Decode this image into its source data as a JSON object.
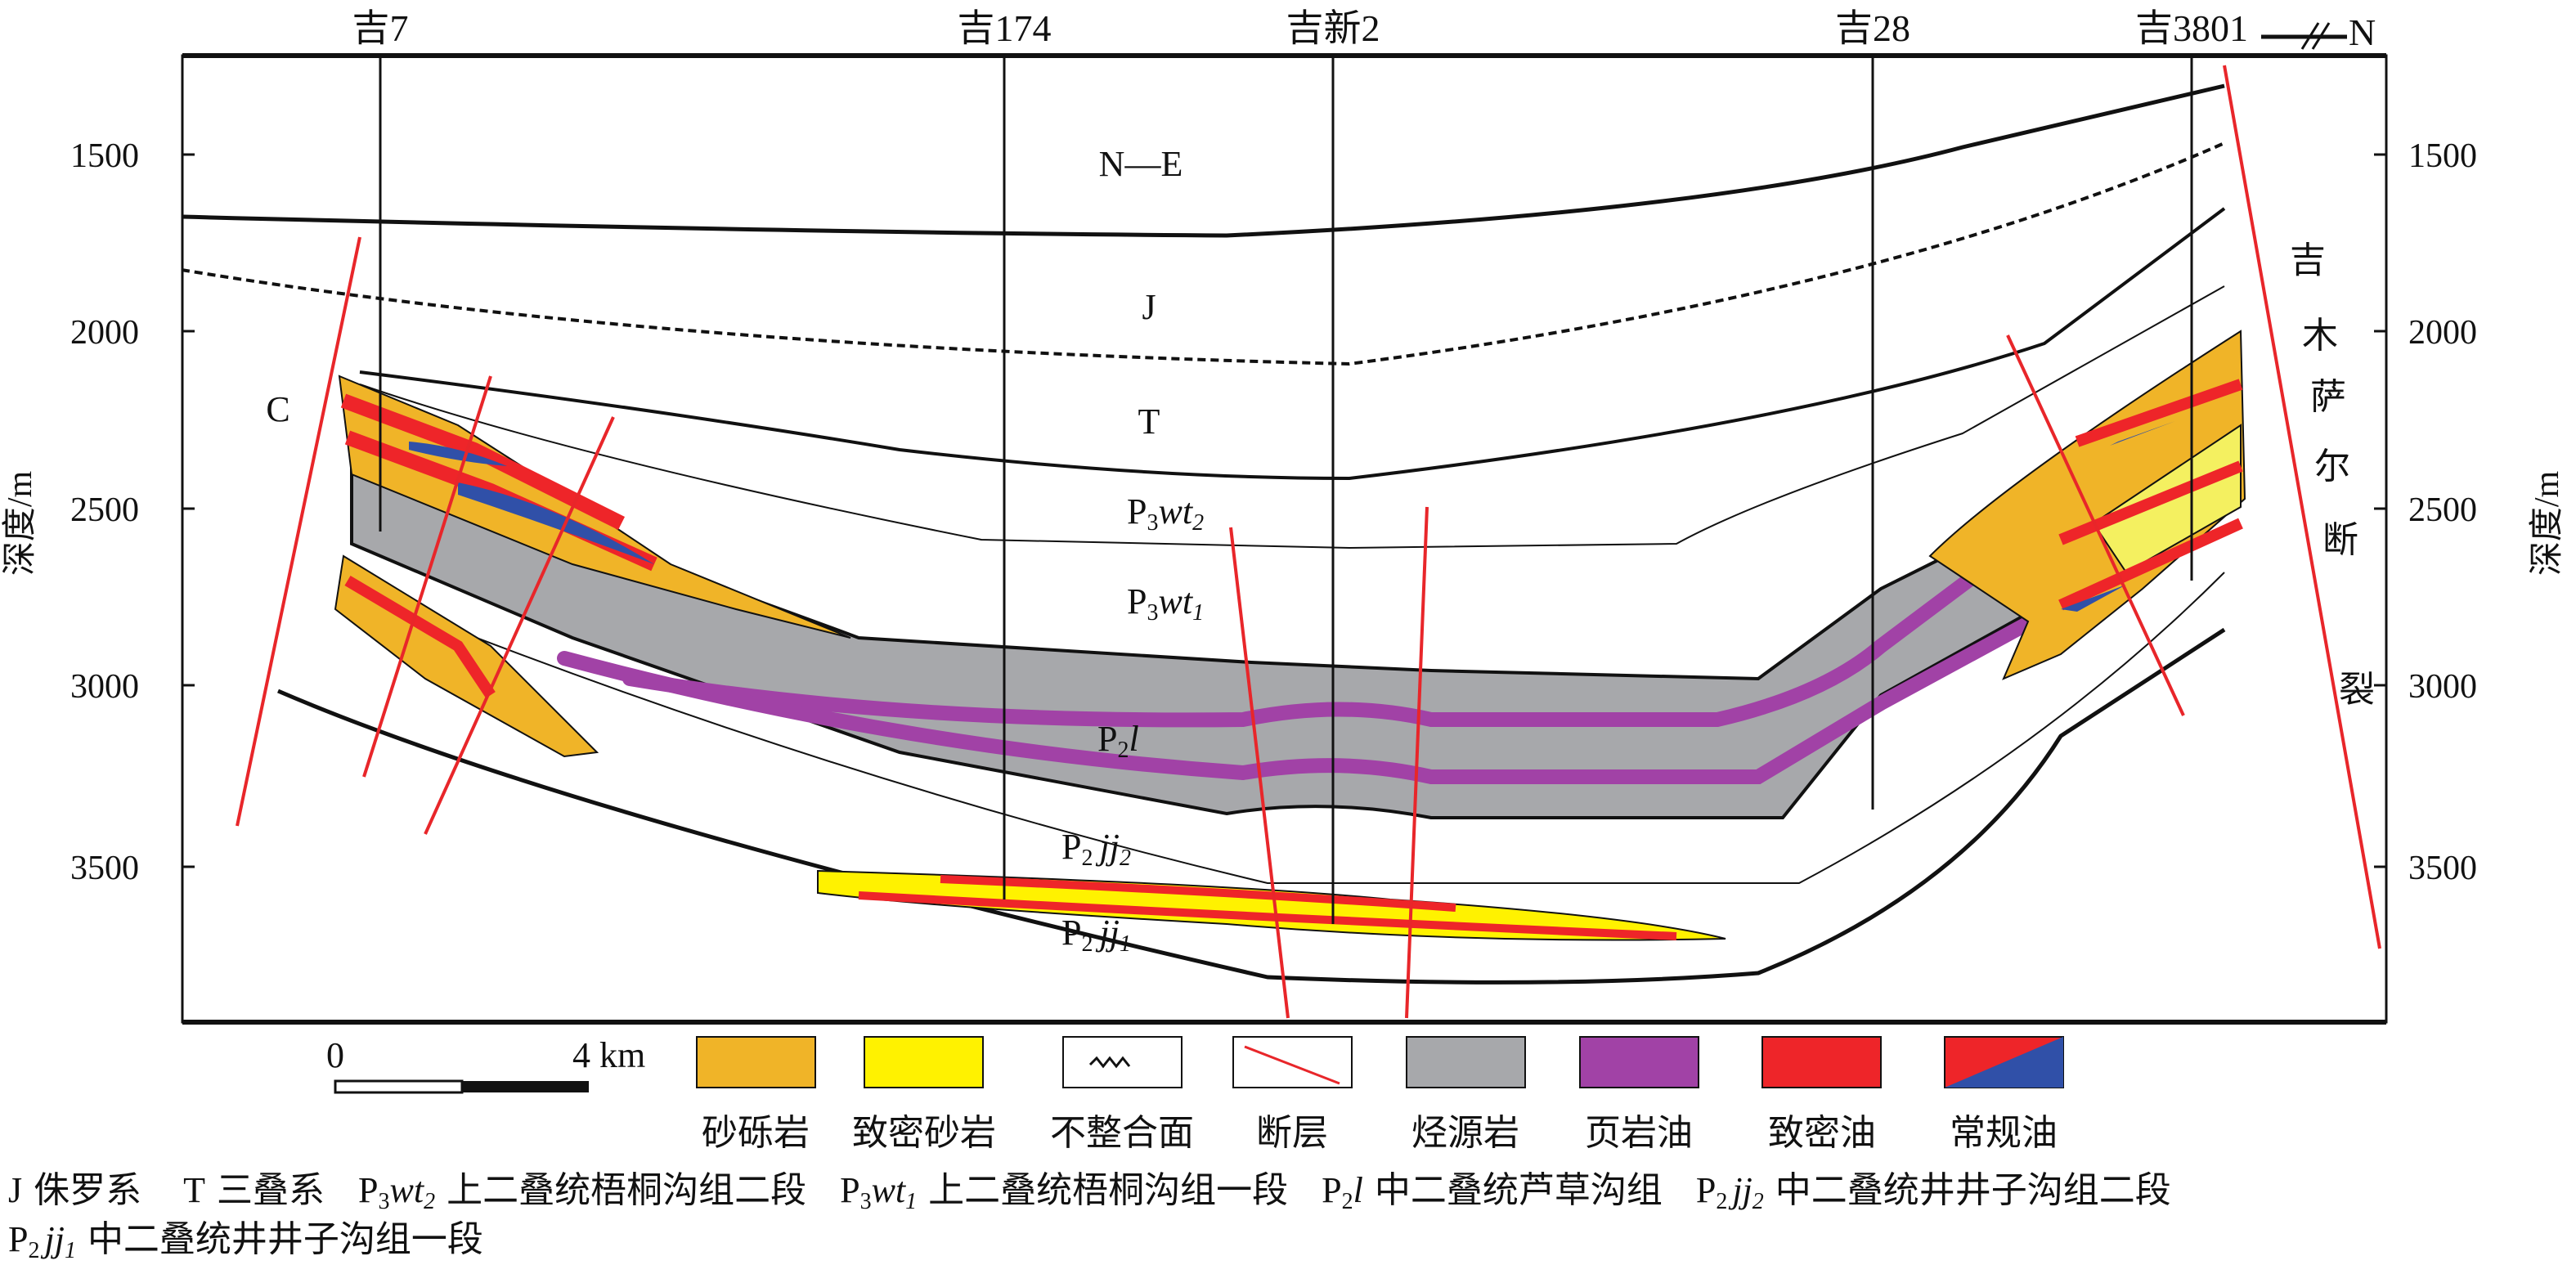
{
  "wells": [
    "吉7",
    "吉174",
    "吉新2",
    "吉28",
    "吉3801"
  ],
  "north_label": "N",
  "axis": {
    "left_title": "深度/m",
    "right_title": "深度/m",
    "ticks": [
      "1500",
      "2000",
      "2500",
      "3000",
      "3500"
    ]
  },
  "formations": {
    "ne": "N—E",
    "j": "J",
    "t": "T",
    "c": "C",
    "p3wt2": {
      "p": "P",
      "s1": "3",
      "m": "wt",
      "s2": "2"
    },
    "p3wt1": {
      "p": "P",
      "s1": "3",
      "m": "wt",
      "s2": "1"
    },
    "p2l": {
      "p": "P",
      "s1": "2",
      "m": "l"
    },
    "p2jj2": {
      "p": "P",
      "s1": "2",
      "m": "jj",
      "s2": "2"
    },
    "p2jj1": {
      "p": "P",
      "s1": "2",
      "m": "jj",
      "s2": "1"
    }
  },
  "fault_name": [
    "吉",
    "木",
    "萨",
    "尔",
    "断",
    "裂"
  ],
  "scale": {
    "start": "0",
    "end": "4 km"
  },
  "legend": [
    {
      "label": "砂砾岩",
      "color": "#f0b428"
    },
    {
      "label": "致密砂岩",
      "color": "#fff200"
    },
    {
      "label": "不整合面"
    },
    {
      "label": "断层",
      "color": "#e8262a"
    },
    {
      "label": "烃源岩",
      "color": "#a7a8ab"
    },
    {
      "label": "页岩油",
      "color": "#a142a6"
    },
    {
      "label": "致密油",
      "color": "#ee2529"
    },
    {
      "label": "常规油",
      "color": "#3050a8"
    }
  ],
  "notes": [
    {
      "p": "J",
      "desc": "侏罗系"
    },
    {
      "p": "T",
      "desc": "三叠系"
    },
    {
      "p": "P",
      "s1": "3",
      "m": "wt",
      "s2": "2",
      "desc": "上二叠统梧桐沟组二段"
    },
    {
      "p": "P",
      "s1": "3",
      "m": "wt",
      "s2": "1",
      "desc": "上二叠统梧桐沟组一段"
    },
    {
      "p": "P",
      "s1": "2",
      "m": "l",
      "desc": "中二叠统芦草沟组"
    },
    {
      "p": "P",
      "s1": "2",
      "m": "jj",
      "s2": "2",
      "desc": "中二叠统井井子沟组二段"
    },
    {
      "p": "P",
      "s1": "2",
      "m": "jj",
      "s2": "1",
      "desc": "中二叠统井井子沟组一段"
    }
  ]
}
